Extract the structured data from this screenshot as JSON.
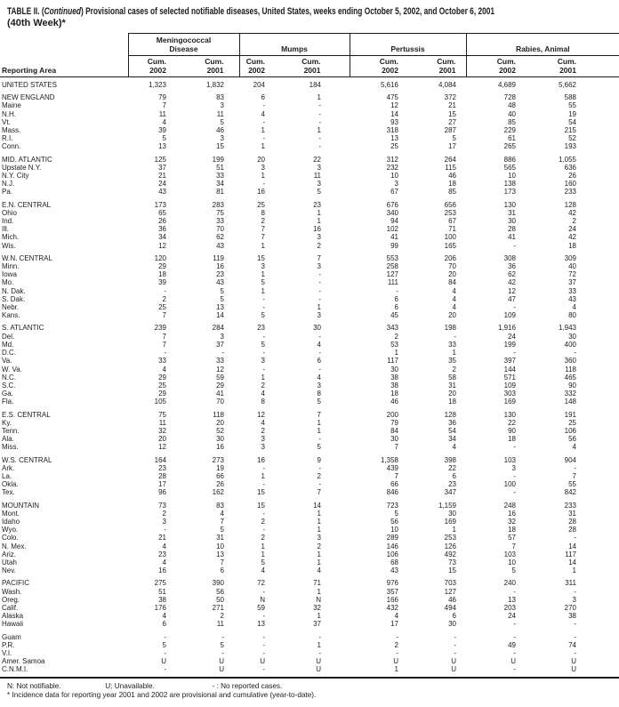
{
  "title": {
    "label": "TABLE II. (",
    "continued": "Continued",
    "rest": ") Provisional cases of selected notifiable diseases, United States, weeks ending October 5, 2002, and October 6, 2001",
    "line2": "(40th Week)*"
  },
  "header": {
    "reporting_area": "Reporting Area",
    "groups": [
      {
        "label": "Meningococcal Disease"
      },
      {
        "label": "Mumps"
      },
      {
        "label": "Pertussis"
      },
      {
        "label": "Rabies, Animal"
      }
    ],
    "subcolumns": [
      {
        "line1": "Cum.",
        "line2": "2002"
      },
      {
        "line1": "Cum.",
        "line2": "2001"
      },
      {
        "line1": "Cum.",
        "line2": "2002"
      },
      {
        "line1": "Cum.",
        "line2": "2001"
      },
      {
        "line1": "Cum.",
        "line2": "2002"
      },
      {
        "line1": "Cum.",
        "line2": "2001"
      },
      {
        "line1": "Cum.",
        "line2": "2002"
      },
      {
        "line1": "Cum.",
        "line2": "2001"
      }
    ]
  },
  "rows": [
    {
      "area": "UNITED STATES",
      "section_start": false,
      "values": [
        "1,323",
        "1,832",
        "204",
        "184",
        "5,616",
        "4,084",
        "4,689",
        "5,662"
      ]
    },
    {
      "area": "NEW ENGLAND",
      "section_start": true,
      "values": [
        "79",
        "83",
        "6",
        "1",
        "475",
        "372",
        "728",
        "588"
      ]
    },
    {
      "area": "Maine",
      "section_start": false,
      "values": [
        "7",
        "3",
        "-",
        "-",
        "12",
        "21",
        "48",
        "55"
      ]
    },
    {
      "area": "N.H.",
      "section_start": false,
      "values": [
        "11",
        "11",
        "4",
        "-",
        "14",
        "15",
        "40",
        "19"
      ]
    },
    {
      "area": "Vt.",
      "section_start": false,
      "values": [
        "4",
        "5",
        "-",
        "-",
        "93",
        "27",
        "85",
        "54"
      ]
    },
    {
      "area": "Mass.",
      "section_start": false,
      "values": [
        "39",
        "46",
        "1",
        "1",
        "318",
        "287",
        "229",
        "215"
      ]
    },
    {
      "area": "R.I.",
      "section_start": false,
      "values": [
        "5",
        "3",
        "-",
        "-",
        "13",
        "5",
        "61",
        "52"
      ]
    },
    {
      "area": "Conn.",
      "section_start": false,
      "values": [
        "13",
        "15",
        "1",
        "-",
        "25",
        "17",
        "265",
        "193"
      ]
    },
    {
      "area": "MID. ATLANTIC",
      "section_start": true,
      "values": [
        "125",
        "199",
        "20",
        "22",
        "312",
        "264",
        "886",
        "1,055"
      ]
    },
    {
      "area": "Upstate N.Y.",
      "section_start": false,
      "values": [
        "37",
        "51",
        "3",
        "3",
        "232",
        "115",
        "565",
        "636"
      ]
    },
    {
      "area": "N.Y. City",
      "section_start": false,
      "values": [
        "21",
        "33",
        "1",
        "11",
        "10",
        "46",
        "10",
        "26"
      ]
    },
    {
      "area": "N.J.",
      "section_start": false,
      "values": [
        "24",
        "34",
        "-",
        "3",
        "3",
        "18",
        "138",
        "160"
      ]
    },
    {
      "area": "Pa.",
      "section_start": false,
      "values": [
        "43",
        "81",
        "16",
        "5",
        "67",
        "85",
        "173",
        "233"
      ]
    },
    {
      "area": "E.N. CENTRAL",
      "section_start": true,
      "values": [
        "173",
        "283",
        "25",
        "23",
        "676",
        "656",
        "130",
        "128"
      ]
    },
    {
      "area": "Ohio",
      "section_start": false,
      "values": [
        "65",
        "75",
        "8",
        "1",
        "340",
        "253",
        "31",
        "42"
      ]
    },
    {
      "area": "Ind.",
      "section_start": false,
      "values": [
        "26",
        "33",
        "2",
        "1",
        "94",
        "67",
        "30",
        "2"
      ]
    },
    {
      "area": "Ill.",
      "section_start": false,
      "values": [
        "36",
        "70",
        "7",
        "16",
        "102",
        "71",
        "28",
        "24"
      ]
    },
    {
      "area": "Mich.",
      "section_start": false,
      "values": [
        "34",
        "62",
        "7",
        "3",
        "41",
        "100",
        "41",
        "42"
      ]
    },
    {
      "area": "Wis.",
      "section_start": false,
      "values": [
        "12",
        "43",
        "1",
        "2",
        "99",
        "165",
        "-",
        "18"
      ]
    },
    {
      "area": "W.N. CENTRAL",
      "section_start": true,
      "values": [
        "120",
        "119",
        "15",
        "7",
        "553",
        "206",
        "308",
        "309"
      ]
    },
    {
      "area": "Minn.",
      "section_start": false,
      "values": [
        "29",
        "16",
        "3",
        "3",
        "258",
        "70",
        "36",
        "40"
      ]
    },
    {
      "area": "Iowa",
      "section_start": false,
      "values": [
        "18",
        "23",
        "1",
        "-",
        "127",
        "20",
        "62",
        "72"
      ]
    },
    {
      "area": "Mo.",
      "section_start": false,
      "values": [
        "39",
        "43",
        "5",
        "-",
        "111",
        "84",
        "42",
        "37"
      ]
    },
    {
      "area": "N. Dak.",
      "section_start": false,
      "values": [
        "-",
        "5",
        "1",
        "-",
        "-",
        "4",
        "12",
        "33"
      ]
    },
    {
      "area": "S. Dak.",
      "section_start": false,
      "values": [
        "2",
        "5",
        "-",
        "-",
        "6",
        "4",
        "47",
        "43"
      ]
    },
    {
      "area": "Nebr.",
      "section_start": false,
      "values": [
        "25",
        "13",
        "-",
        "1",
        "6",
        "4",
        "-",
        "4"
      ]
    },
    {
      "area": "Kans.",
      "section_start": false,
      "values": [
        "7",
        "14",
        "5",
        "3",
        "45",
        "20",
        "109",
        "80"
      ]
    },
    {
      "area": "S. ATLANTIC",
      "section_start": true,
      "values": [
        "239",
        "284",
        "23",
        "30",
        "343",
        "198",
        "1,916",
        "1,943"
      ]
    },
    {
      "area": "Del.",
      "section_start": false,
      "values": [
        "7",
        "3",
        "-",
        "-",
        "2",
        "-",
        "24",
        "30"
      ]
    },
    {
      "area": "Md.",
      "section_start": false,
      "values": [
        "7",
        "37",
        "5",
        "4",
        "53",
        "33",
        "199",
        "400"
      ]
    },
    {
      "area": "D.C.",
      "section_start": false,
      "values": [
        "-",
        "-",
        "-",
        "-",
        "1",
        "1",
        "-",
        "-"
      ]
    },
    {
      "area": "Va.",
      "section_start": false,
      "values": [
        "33",
        "33",
        "3",
        "6",
        "117",
        "35",
        "397",
        "360"
      ]
    },
    {
      "area": "W. Va.",
      "section_start": false,
      "values": [
        "4",
        "12",
        "-",
        "-",
        "30",
        "2",
        "144",
        "118"
      ]
    },
    {
      "area": "N.C.",
      "section_start": false,
      "values": [
        "29",
        "59",
        "1",
        "4",
        "38",
        "58",
        "571",
        "465"
      ]
    },
    {
      "area": "S.C.",
      "section_start": false,
      "values": [
        "25",
        "29",
        "2",
        "3",
        "38",
        "31",
        "109",
        "90"
      ]
    },
    {
      "area": "Ga.",
      "section_start": false,
      "values": [
        "29",
        "41",
        "4",
        "8",
        "18",
        "20",
        "303",
        "332"
      ]
    },
    {
      "area": "Fla.",
      "section_start": false,
      "values": [
        "105",
        "70",
        "8",
        "5",
        "46",
        "18",
        "169",
        "148"
      ]
    },
    {
      "area": "E.S. CENTRAL",
      "section_start": true,
      "values": [
        "75",
        "118",
        "12",
        "7",
        "200",
        "128",
        "130",
        "191"
      ]
    },
    {
      "area": "Ky.",
      "section_start": false,
      "values": [
        "11",
        "20",
        "4",
        "1",
        "79",
        "36",
        "22",
        "25"
      ]
    },
    {
      "area": "Tenn.",
      "section_start": false,
      "values": [
        "32",
        "52",
        "2",
        "1",
        "84",
        "54",
        "90",
        "106"
      ]
    },
    {
      "area": "Ala.",
      "section_start": false,
      "values": [
        "20",
        "30",
        "3",
        "-",
        "30",
        "34",
        "18",
        "56"
      ]
    },
    {
      "area": "Miss.",
      "section_start": false,
      "values": [
        "12",
        "16",
        "3",
        "5",
        "7",
        "4",
        "-",
        "4"
      ]
    },
    {
      "area": "W.S. CENTRAL",
      "section_start": true,
      "values": [
        "164",
        "273",
        "16",
        "9",
        "1,358",
        "398",
        "103",
        "904"
      ]
    },
    {
      "area": "Ark.",
      "section_start": false,
      "values": [
        "23",
        "19",
        "-",
        "-",
        "439",
        "22",
        "3",
        "-"
      ]
    },
    {
      "area": "La.",
      "section_start": false,
      "values": [
        "28",
        "66",
        "1",
        "2",
        "7",
        "6",
        "-",
        "7"
      ]
    },
    {
      "area": "Okla.",
      "section_start": false,
      "values": [
        "17",
        "26",
        "-",
        "-",
        "66",
        "23",
        "100",
        "55"
      ]
    },
    {
      "area": "Tex.",
      "section_start": false,
      "values": [
        "96",
        "162",
        "15",
        "7",
        "846",
        "347",
        "-",
        "842"
      ]
    },
    {
      "area": "MOUNTAIN",
      "section_start": true,
      "values": [
        "73",
        "83",
        "15",
        "14",
        "723",
        "1,159",
        "248",
        "233"
      ]
    },
    {
      "area": "Mont.",
      "section_start": false,
      "values": [
        "2",
        "4",
        "-",
        "1",
        "5",
        "30",
        "16",
        "31"
      ]
    },
    {
      "area": "Idaho",
      "section_start": false,
      "values": [
        "3",
        "7",
        "2",
        "1",
        "56",
        "169",
        "32",
        "28"
      ]
    },
    {
      "area": "Wyo.",
      "section_start": false,
      "values": [
        "-",
        "5",
        "-",
        "1",
        "10",
        "1",
        "18",
        "28"
      ]
    },
    {
      "area": "Colo.",
      "section_start": false,
      "values": [
        "21",
        "31",
        "2",
        "3",
        "289",
        "253",
        "57",
        "-"
      ]
    },
    {
      "area": "N. Mex.",
      "section_start": false,
      "values": [
        "4",
        "10",
        "1",
        "2",
        "146",
        "126",
        "7",
        "14"
      ]
    },
    {
      "area": "Ariz.",
      "section_start": false,
      "values": [
        "23",
        "13",
        "1",
        "1",
        "106",
        "492",
        "103",
        "117"
      ]
    },
    {
      "area": "Utah",
      "section_start": false,
      "values": [
        "4",
        "7",
        "5",
        "1",
        "68",
        "73",
        "10",
        "14"
      ]
    },
    {
      "area": "Nev.",
      "section_start": false,
      "values": [
        "16",
        "6",
        "4",
        "4",
        "43",
        "15",
        "5",
        "1"
      ]
    },
    {
      "area": "PACIFIC",
      "section_start": true,
      "values": [
        "275",
        "390",
        "72",
        "71",
        "976",
        "703",
        "240",
        "311"
      ]
    },
    {
      "area": "Wash.",
      "section_start": false,
      "values": [
        "51",
        "56",
        "-",
        "1",
        "357",
        "127",
        "-",
        "-"
      ]
    },
    {
      "area": "Oreg.",
      "section_start": false,
      "values": [
        "38",
        "50",
        "N",
        "N",
        "166",
        "46",
        "13",
        "3"
      ]
    },
    {
      "area": "Calif.",
      "section_start": false,
      "values": [
        "176",
        "271",
        "59",
        "32",
        "432",
        "494",
        "203",
        "270"
      ]
    },
    {
      "area": "Alaska",
      "section_start": false,
      "values": [
        "4",
        "2",
        "-",
        "1",
        "4",
        "6",
        "24",
        "38"
      ]
    },
    {
      "area": "Hawaii",
      "section_start": false,
      "values": [
        "6",
        "11",
        "13",
        "37",
        "17",
        "30",
        "-",
        "-"
      ]
    },
    {
      "area": "Guam",
      "section_start": true,
      "values": [
        "-",
        "-",
        "-",
        "-",
        "-",
        "-",
        "-",
        "-"
      ]
    },
    {
      "area": "P.R.",
      "section_start": false,
      "values": [
        "5",
        "5",
        "-",
        "1",
        "2",
        "-",
        "49",
        "74"
      ]
    },
    {
      "area": "V.I.",
      "section_start": false,
      "values": [
        "-",
        "-",
        "-",
        "-",
        "-",
        "-",
        "-",
        "-"
      ]
    },
    {
      "area": "Amer. Samoa",
      "section_start": false,
      "values": [
        "U",
        "U",
        "U",
        "U",
        "U",
        "U",
        "U",
        "U"
      ]
    },
    {
      "area": "C.N.M.I.",
      "section_start": false,
      "values": [
        "-",
        "U",
        "-",
        "U",
        "1",
        "U",
        "-",
        "U"
      ]
    }
  ],
  "footnotes": {
    "n": "N: Not notifiable.",
    "u": "U: Unavailable.",
    "dash": "- : No reported cases.",
    "incidence": "* Incidence data for reporting year 2001 and 2002 are provisional and cumulative (year-to-date)."
  },
  "colors": {
    "ink": "#1c1c1c",
    "background": "#ffffff"
  }
}
